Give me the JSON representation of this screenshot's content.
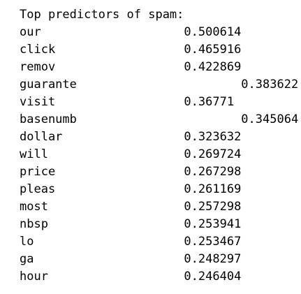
{
  "header": "Top predictors of spam:",
  "rows": [
    {
      "term": "our",
      "value": "0.500614"
    },
    {
      "term": "click",
      "value": "0.465916"
    },
    {
      "term": "remov",
      "value": "0.422869"
    },
    {
      "term": "guarante",
      "value": "0.383622"
    },
    {
      "term": "visit",
      "value": "0.36771"
    },
    {
      "term": "basenumb",
      "value": "0.345064"
    },
    {
      "term": "dollar",
      "value": "0.323632"
    },
    {
      "term": "will",
      "value": "0.269724"
    },
    {
      "term": "price",
      "value": "0.267298"
    },
    {
      "term": "pleas",
      "value": "0.261169"
    },
    {
      "term": "most",
      "value": "0.257298"
    },
    {
      "term": "nbsp",
      "value": "0.253941"
    },
    {
      "term": "lo",
      "value": "0.253467"
    },
    {
      "term": "ga",
      "value": "0.248297"
    },
    {
      "term": "hour",
      "value": "0.246404"
    }
  ]
}
